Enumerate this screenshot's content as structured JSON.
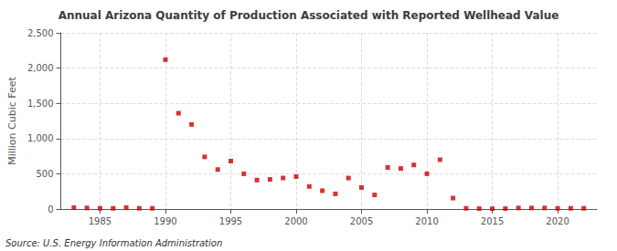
{
  "chart_data": {
    "type": "scatter",
    "title": "Annual Arizona Quantity of Production Associated with Reported Wellhead Value",
    "ylabel": "Million Cubic Feet",
    "annotation": "Source: U.S. Energy Information Administration",
    "x": [
      1983,
      1984,
      1985,
      1986,
      1987,
      1988,
      1989,
      1990,
      1991,
      1992,
      1993,
      1994,
      1995,
      1996,
      1997,
      1998,
      1999,
      2000,
      2001,
      2002,
      2003,
      2004,
      2005,
      2006,
      2007,
      2008,
      2009,
      2010,
      2011,
      2012,
      2013,
      2014,
      2015,
      2016,
      2017,
      2018,
      2019,
      2020,
      2021,
      2022
    ],
    "values": [
      20,
      15,
      10,
      10,
      20,
      10,
      10,
      2120,
      1360,
      1200,
      740,
      560,
      680,
      500,
      410,
      420,
      440,
      460,
      320,
      260,
      215,
      440,
      305,
      200,
      590,
      575,
      625,
      500,
      700,
      155,
      10,
      5,
      5,
      5,
      15,
      15,
      15,
      10,
      10,
      10
    ],
    "color": "#cc0000",
    "marker": "square",
    "xlim": [
      1982,
      2023
    ],
    "xticks": [
      1985,
      1990,
      1995,
      2000,
      2005,
      2010,
      2015,
      2020
    ],
    "ylim": [
      0,
      2500
    ],
    "yticks": [
      0,
      500,
      {
        "value": 1000,
        "label": "1,000"
      },
      {
        "value": 1500,
        "label": "1,500"
      },
      {
        "value": 2000,
        "label": "2,000"
      },
      {
        "value": 2500,
        "label": "2,500"
      }
    ],
    "grid": true
  }
}
